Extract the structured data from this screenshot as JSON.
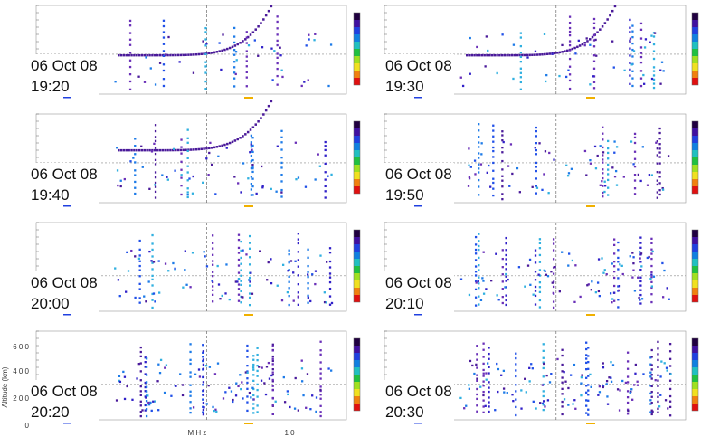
{
  "panels": [
    {
      "date": "06 Oct 08",
      "time": "19:20"
    },
    {
      "date": "06 Oct 08",
      "time": "19:30"
    },
    {
      "date": "06 Oct 08",
      "time": "19:40"
    },
    {
      "date": "06 Oct 08",
      "time": "19:50"
    },
    {
      "date": "06 Oct 08",
      "time": "20:00"
    },
    {
      "date": "06 Oct 08",
      "time": "20:10"
    },
    {
      "date": "06 Oct 08",
      "time": "20:20"
    },
    {
      "date": "06 Oct 08",
      "time": "20:30"
    }
  ],
  "axis": {
    "y_label": "Altitude (km)",
    "y_ticks": [
      "6 0 0",
      "4 0 0",
      "2 0 0",
      "0"
    ],
    "x_label": "M H z",
    "x_tick": "1 0"
  }
}
